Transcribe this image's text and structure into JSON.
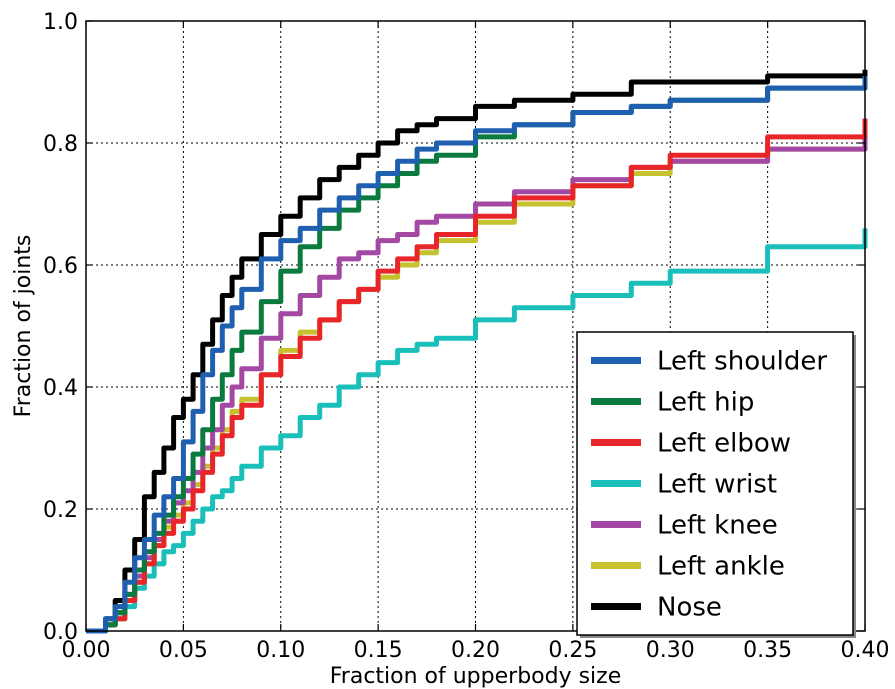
{
  "chart_data": {
    "type": "line",
    "title": "",
    "xlabel": "Fraction of upperbody size",
    "ylabel": "Fraction of joints",
    "xlim": [
      0.0,
      0.4
    ],
    "ylim": [
      0.0,
      1.0
    ],
    "xticks": [
      "0.00",
      "0.05",
      "0.10",
      "0.15",
      "0.20",
      "0.25",
      "0.30",
      "0.35",
      "0.40"
    ],
    "yticks": [
      "0.0",
      "0.2",
      "0.4",
      "0.6",
      "0.8",
      "1.0"
    ],
    "grid": true,
    "legend_position": "lower-right",
    "series": [
      {
        "name": "Left shoulder",
        "color": "#1f5fb0",
        "x": [
          0.0,
          0.01,
          0.015,
          0.02,
          0.025,
          0.03,
          0.035,
          0.04,
          0.045,
          0.05,
          0.055,
          0.06,
          0.065,
          0.07,
          0.075,
          0.08,
          0.09,
          0.1,
          0.11,
          0.12,
          0.13,
          0.14,
          0.15,
          0.16,
          0.17,
          0.18,
          0.2,
          0.22,
          0.25,
          0.28,
          0.3,
          0.35,
          0.4
        ],
        "values": [
          0.0,
          0.02,
          0.04,
          0.08,
          0.12,
          0.15,
          0.19,
          0.22,
          0.25,
          0.31,
          0.36,
          0.42,
          0.46,
          0.5,
          0.53,
          0.56,
          0.61,
          0.64,
          0.66,
          0.69,
          0.71,
          0.73,
          0.75,
          0.77,
          0.79,
          0.8,
          0.82,
          0.83,
          0.85,
          0.86,
          0.87,
          0.89,
          0.91
        ]
      },
      {
        "name": "Left hip",
        "color": "#0a7a3e",
        "x": [
          0.0,
          0.01,
          0.015,
          0.02,
          0.025,
          0.03,
          0.035,
          0.04,
          0.045,
          0.05,
          0.055,
          0.06,
          0.065,
          0.07,
          0.075,
          0.08,
          0.09,
          0.1,
          0.11,
          0.12,
          0.13,
          0.14,
          0.15,
          0.16,
          0.17,
          0.18,
          0.2,
          0.22,
          0.25,
          0.28,
          0.3,
          0.35,
          0.4
        ],
        "values": [
          0.0,
          0.01,
          0.03,
          0.06,
          0.1,
          0.13,
          0.16,
          0.19,
          0.22,
          0.25,
          0.29,
          0.33,
          0.38,
          0.42,
          0.46,
          0.49,
          0.54,
          0.59,
          0.63,
          0.66,
          0.69,
          0.71,
          0.73,
          0.75,
          0.77,
          0.78,
          0.81,
          0.83,
          0.85,
          0.86,
          0.87,
          0.89,
          0.9
        ]
      },
      {
        "name": "Left elbow",
        "color": "#e8262a",
        "x": [
          0.0,
          0.01,
          0.015,
          0.02,
          0.025,
          0.03,
          0.035,
          0.04,
          0.045,
          0.05,
          0.055,
          0.06,
          0.065,
          0.07,
          0.075,
          0.08,
          0.09,
          0.1,
          0.11,
          0.12,
          0.13,
          0.14,
          0.15,
          0.16,
          0.17,
          0.18,
          0.2,
          0.22,
          0.25,
          0.28,
          0.3,
          0.35,
          0.4
        ],
        "values": [
          0.0,
          0.01,
          0.02,
          0.05,
          0.08,
          0.11,
          0.14,
          0.16,
          0.18,
          0.2,
          0.23,
          0.26,
          0.29,
          0.32,
          0.35,
          0.37,
          0.42,
          0.45,
          0.48,
          0.51,
          0.54,
          0.56,
          0.59,
          0.61,
          0.63,
          0.65,
          0.68,
          0.71,
          0.73,
          0.76,
          0.78,
          0.81,
          0.84
        ]
      },
      {
        "name": "Left wrist",
        "color": "#1bbfb9",
        "x": [
          0.0,
          0.01,
          0.015,
          0.02,
          0.025,
          0.03,
          0.035,
          0.04,
          0.045,
          0.05,
          0.055,
          0.06,
          0.065,
          0.07,
          0.075,
          0.08,
          0.09,
          0.1,
          0.11,
          0.12,
          0.13,
          0.14,
          0.15,
          0.16,
          0.17,
          0.18,
          0.2,
          0.22,
          0.25,
          0.28,
          0.3,
          0.35,
          0.4
        ],
        "values": [
          0.0,
          0.01,
          0.02,
          0.04,
          0.07,
          0.09,
          0.11,
          0.13,
          0.14,
          0.16,
          0.18,
          0.2,
          0.22,
          0.23,
          0.25,
          0.27,
          0.3,
          0.32,
          0.35,
          0.37,
          0.4,
          0.42,
          0.44,
          0.46,
          0.47,
          0.48,
          0.51,
          0.53,
          0.55,
          0.57,
          0.59,
          0.63,
          0.66
        ]
      },
      {
        "name": "Left knee",
        "color": "#a349a4",
        "x": [
          0.0,
          0.01,
          0.015,
          0.02,
          0.025,
          0.03,
          0.035,
          0.04,
          0.045,
          0.05,
          0.055,
          0.06,
          0.065,
          0.07,
          0.075,
          0.08,
          0.09,
          0.1,
          0.11,
          0.12,
          0.13,
          0.14,
          0.15,
          0.16,
          0.17,
          0.18,
          0.2,
          0.22,
          0.25,
          0.28,
          0.3,
          0.35,
          0.4
        ],
        "values": [
          0.0,
          0.01,
          0.03,
          0.06,
          0.09,
          0.12,
          0.15,
          0.18,
          0.21,
          0.23,
          0.26,
          0.3,
          0.33,
          0.37,
          0.4,
          0.43,
          0.48,
          0.52,
          0.55,
          0.58,
          0.61,
          0.62,
          0.64,
          0.65,
          0.67,
          0.68,
          0.7,
          0.72,
          0.74,
          0.76,
          0.77,
          0.79,
          0.81
        ]
      },
      {
        "name": "Left ankle",
        "color": "#c6c12f",
        "x": [
          0.0,
          0.01,
          0.015,
          0.02,
          0.025,
          0.03,
          0.035,
          0.04,
          0.045,
          0.05,
          0.055,
          0.06,
          0.065,
          0.07,
          0.075,
          0.08,
          0.09,
          0.1,
          0.11,
          0.12,
          0.13,
          0.14,
          0.15,
          0.16,
          0.17,
          0.18,
          0.2,
          0.22,
          0.25,
          0.28,
          0.3,
          0.35,
          0.4
        ],
        "values": [
          0.0,
          0.01,
          0.03,
          0.05,
          0.08,
          0.11,
          0.14,
          0.17,
          0.19,
          0.21,
          0.24,
          0.27,
          0.3,
          0.33,
          0.36,
          0.38,
          0.42,
          0.46,
          0.49,
          0.51,
          0.54,
          0.56,
          0.58,
          0.6,
          0.62,
          0.64,
          0.67,
          0.7,
          0.73,
          0.75,
          0.77,
          0.79,
          0.81
        ]
      },
      {
        "name": "Nose",
        "color": "#000000",
        "x": [
          0.0,
          0.01,
          0.015,
          0.02,
          0.025,
          0.03,
          0.035,
          0.04,
          0.045,
          0.05,
          0.055,
          0.06,
          0.065,
          0.07,
          0.075,
          0.08,
          0.09,
          0.1,
          0.11,
          0.12,
          0.13,
          0.14,
          0.15,
          0.16,
          0.17,
          0.18,
          0.2,
          0.22,
          0.25,
          0.28,
          0.3,
          0.35,
          0.4
        ],
        "values": [
          0.0,
          0.02,
          0.05,
          0.1,
          0.15,
          0.22,
          0.26,
          0.3,
          0.35,
          0.38,
          0.42,
          0.47,
          0.51,
          0.55,
          0.58,
          0.61,
          0.65,
          0.68,
          0.71,
          0.74,
          0.76,
          0.78,
          0.8,
          0.82,
          0.83,
          0.84,
          0.86,
          0.87,
          0.88,
          0.9,
          0.9,
          0.91,
          0.92
        ]
      }
    ]
  }
}
